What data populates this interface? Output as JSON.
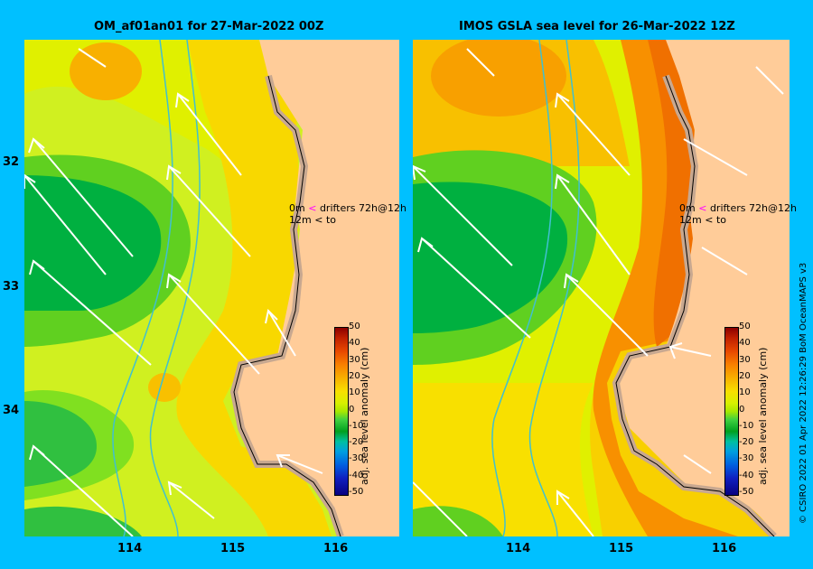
{
  "panels": [
    {
      "title": "OM_af01an01 for 27-Mar-2022 00Z",
      "drifter_line1": "0m",
      "drifter_label1": "drifters 72h@12h",
      "drifter_line2": "12m",
      "drifter_label2": "to"
    },
    {
      "title": "IMOS GSLA sea level  for 26-Mar-2022 12Z",
      "drifter_line1": "0m",
      "drifter_label1": "drifters 72h@12h",
      "drifter_line2": "12m",
      "drifter_label2": "to"
    }
  ],
  "axes": {
    "y_ticks": [
      "32",
      "33",
      "34"
    ],
    "x_ticks": [
      "114",
      "115",
      "116"
    ]
  },
  "colorbar": {
    "label": "adj. sea level anomaly (cm)",
    "ticks": [
      "50",
      "40",
      "30",
      "20",
      "10",
      "0",
      "-10",
      "-20",
      "-30",
      "-40",
      "-50"
    ]
  },
  "credit": "© CSIRO 2022   01 Apr 2022 12:26:29 BoM OceanMAPS v3",
  "colors": {
    "background": "#00c0ff",
    "land": "#ffcc99",
    "coast": "#c8a890",
    "arrows": "#ffffff",
    "bathymetry": "#40c0d0",
    "drifter_0m": "#ff00ff",
    "drifter_12m": "#000000"
  }
}
